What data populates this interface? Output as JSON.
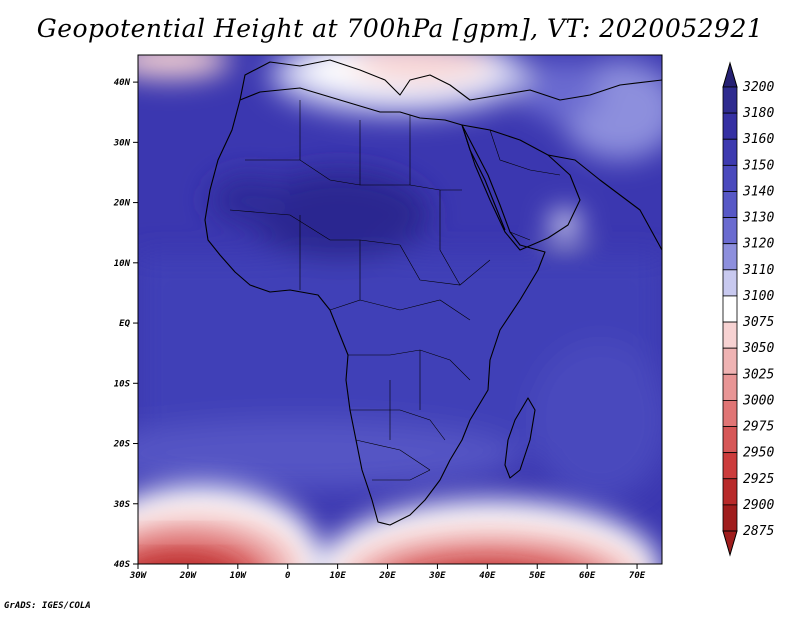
{
  "title": "Geopotential Height at 700hPa [gpm], VT: 2020052921",
  "credit": "GrADS: IGES/COLA",
  "map": {
    "lon_ticks": [
      "30W",
      "20W",
      "10W",
      "0",
      "10E",
      "20E",
      "30E",
      "40E",
      "50E",
      "60E",
      "70E"
    ],
    "lat_ticks": [
      "40N",
      "30N",
      "20N",
      "10N",
      "EQ",
      "10S",
      "20S",
      "30S",
      "40S"
    ]
  },
  "colorbar": {
    "levels": [
      "3200",
      "3180",
      "3160",
      "3150",
      "3140",
      "3130",
      "3120",
      "3110",
      "3100",
      "3075",
      "3050",
      "3025",
      "3000",
      "2975",
      "2950",
      "2925",
      "2900",
      "2875"
    ],
    "colors": [
      "#262173",
      "#2e2b8f",
      "#3530a3",
      "#3d3ab0",
      "#4a49bd",
      "#5758c6",
      "#6a6bd0",
      "#8d8fdd",
      "#c8c9ef",
      "#ffffff",
      "#f7d2d2",
      "#efb3b3",
      "#e89595",
      "#e07575",
      "#d65757",
      "#cc3c3c",
      "#b82a2a",
      "#a01d1d"
    ]
  }
}
